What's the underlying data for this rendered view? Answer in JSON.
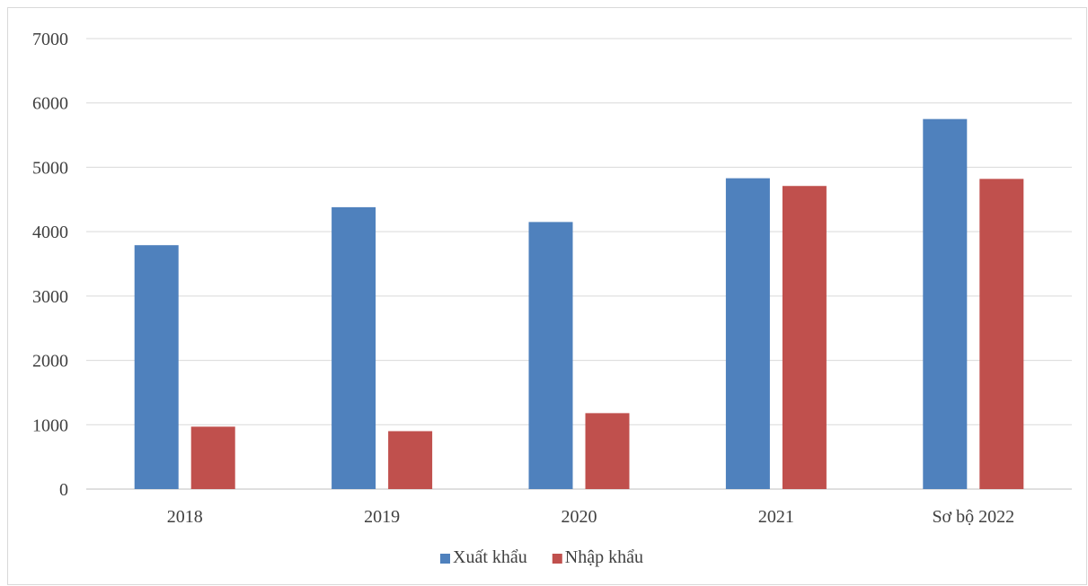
{
  "chart_data": {
    "type": "bar",
    "title": "",
    "xlabel": "",
    "ylabel": "",
    "categories": [
      "2018",
      "2019",
      "2020",
      "2021",
      "Sơ bộ 2022"
    ],
    "series": [
      {
        "name": "Xuất khẩu",
        "color": "#4F81BD",
        "values": [
          3790,
          4380,
          4150,
          4830,
          5750
        ]
      },
      {
        "name": "Nhập khẩu",
        "color": "#C0504D",
        "values": [
          970,
          900,
          1180,
          4710,
          4820
        ]
      }
    ],
    "ylim": [
      0,
      7000
    ],
    "yticks": [
      "0",
      "1000",
      "2000",
      "3000",
      "4000",
      "5000",
      "6000",
      "7000"
    ],
    "grid": true,
    "legend_position": "bottom-center"
  }
}
